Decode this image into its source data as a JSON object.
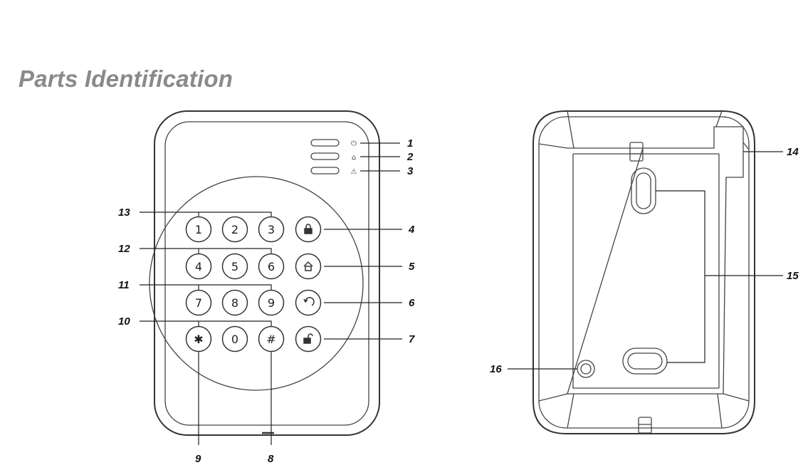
{
  "title": "Parts Identification",
  "front": {
    "led_symbols": [
      "⏻",
      "⌂",
      "⚠"
    ],
    "keys": [
      {
        "label": "1",
        "name": "key-1"
      },
      {
        "label": "2",
        "name": "key-2"
      },
      {
        "label": "3",
        "name": "key-3"
      },
      {
        "label": "",
        "name": "key-arm-away",
        "icon": "lock-icon"
      },
      {
        "label": "4",
        "name": "key-4"
      },
      {
        "label": "5",
        "name": "key-5"
      },
      {
        "label": "6",
        "name": "key-6"
      },
      {
        "label": "",
        "name": "key-arm-home",
        "icon": "home-icon"
      },
      {
        "label": "7",
        "name": "key-7"
      },
      {
        "label": "8",
        "name": "key-8"
      },
      {
        "label": "9",
        "name": "key-9"
      },
      {
        "label": "",
        "name": "key-back",
        "icon": "back-arrow-icon"
      },
      {
        "label": "✱",
        "name": "key-star"
      },
      {
        "label": "0",
        "name": "key-0"
      },
      {
        "label": "#",
        "name": "key-hash"
      },
      {
        "label": "",
        "name": "key-disarm",
        "icon": "unlock-icon"
      }
    ],
    "callouts": [
      "1",
      "2",
      "3",
      "4",
      "5",
      "6",
      "7",
      "8",
      "9",
      "10",
      "11",
      "12",
      "13"
    ]
  },
  "back": {
    "callouts": [
      "14",
      "15",
      "16"
    ]
  }
}
